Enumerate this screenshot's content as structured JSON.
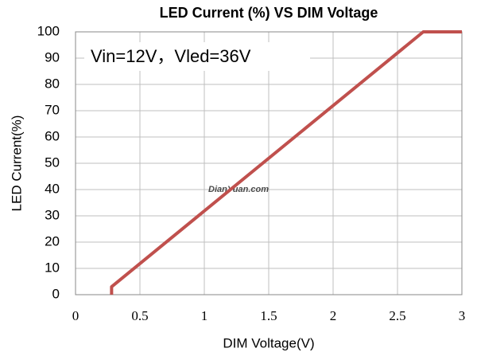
{
  "chart_data": {
    "type": "line",
    "title": "LED Current (%) VS DIM Voltage",
    "annotation": "Vin=12V，Vled=36V",
    "watermark": "DianYuan.com",
    "x_label": "DIM Voltage(V)",
    "y_label": "LED Current(%)",
    "series": [
      {
        "color": "#c0504d",
        "x": [
          0.28,
          0.28,
          2.7,
          3
        ],
        "values": [
          0,
          3,
          100,
          100
        ]
      }
    ],
    "xlim": [
      0,
      3
    ],
    "xticks": [
      0,
      0.5,
      1,
      1.5,
      2,
      2.5,
      3
    ],
    "ylim": [
      0,
      100
    ],
    "yticks": [
      0,
      10,
      20,
      30,
      40,
      50,
      60,
      70,
      80,
      90,
      100
    ],
    "grid": true
  }
}
